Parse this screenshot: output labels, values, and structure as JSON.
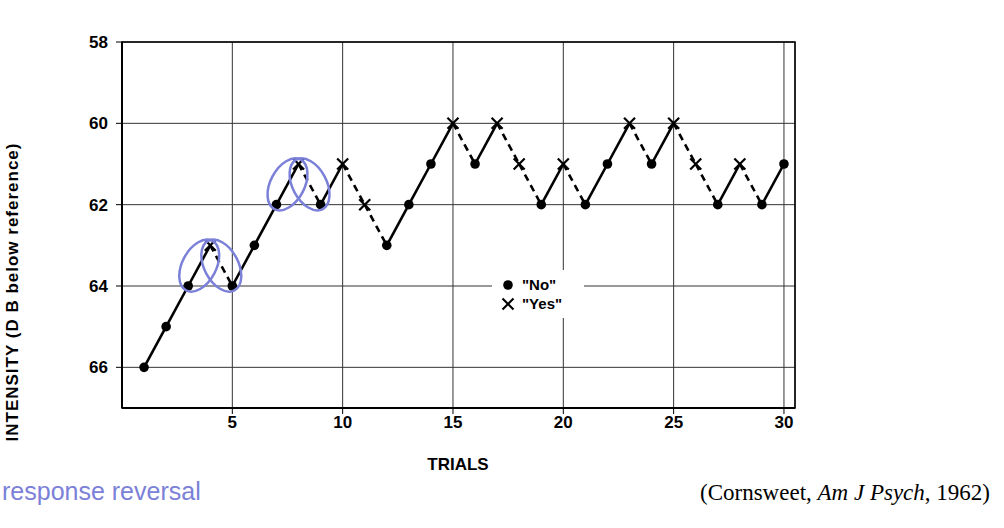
{
  "chart_data": {
    "type": "line",
    "x_label": "TRIALS",
    "y_label": "INTENSITY (D B below reference)",
    "x": [
      1,
      2,
      3,
      4,
      5,
      6,
      7,
      8,
      9,
      10,
      11,
      12,
      13,
      14,
      15,
      16,
      17,
      18,
      19,
      20,
      21,
      22,
      23,
      24,
      25,
      26,
      27,
      28,
      29,
      30
    ],
    "values": [
      66,
      65,
      64,
      63,
      64,
      63,
      62,
      61,
      62,
      61,
      62,
      63,
      62,
      61,
      60,
      61,
      60,
      61,
      62,
      61,
      62,
      61,
      60,
      61,
      60,
      61,
      62,
      61,
      62,
      61
    ],
    "responses": [
      "No",
      "No",
      "No",
      "Yes",
      "No",
      "No",
      "No",
      "Yes",
      "No",
      "Yes",
      "Yes",
      "No",
      "No",
      "No",
      "Yes",
      "No",
      "Yes",
      "Yes",
      "No",
      "Yes",
      "No",
      "No",
      "Yes",
      "No",
      "Yes",
      "Yes",
      "No",
      "Yes",
      "No",
      "No"
    ],
    "legend_entries": [
      {
        "label": "\"No\"",
        "response": "No",
        "marker": "dot",
        "line_style": "solid"
      },
      {
        "label": "\"Yes\"",
        "response": "Yes",
        "marker": "x",
        "line_style": "dashed"
      }
    ],
    "color": "#000000",
    "xlim": [
      0,
      30.5
    ],
    "xticks": [
      5,
      10,
      15,
      20,
      25,
      30
    ],
    "ylim": [
      58,
      67
    ],
    "yticks": [
      58,
      60,
      62,
      64,
      66
    ],
    "grid": true,
    "annotation": {
      "text": "response reversal",
      "color": "#7b80d8",
      "reversals": [
        4,
        8
      ]
    },
    "source": [
      "(Cornsweet, ",
      "Am J Psych",
      ", 1962)"
    ]
  }
}
